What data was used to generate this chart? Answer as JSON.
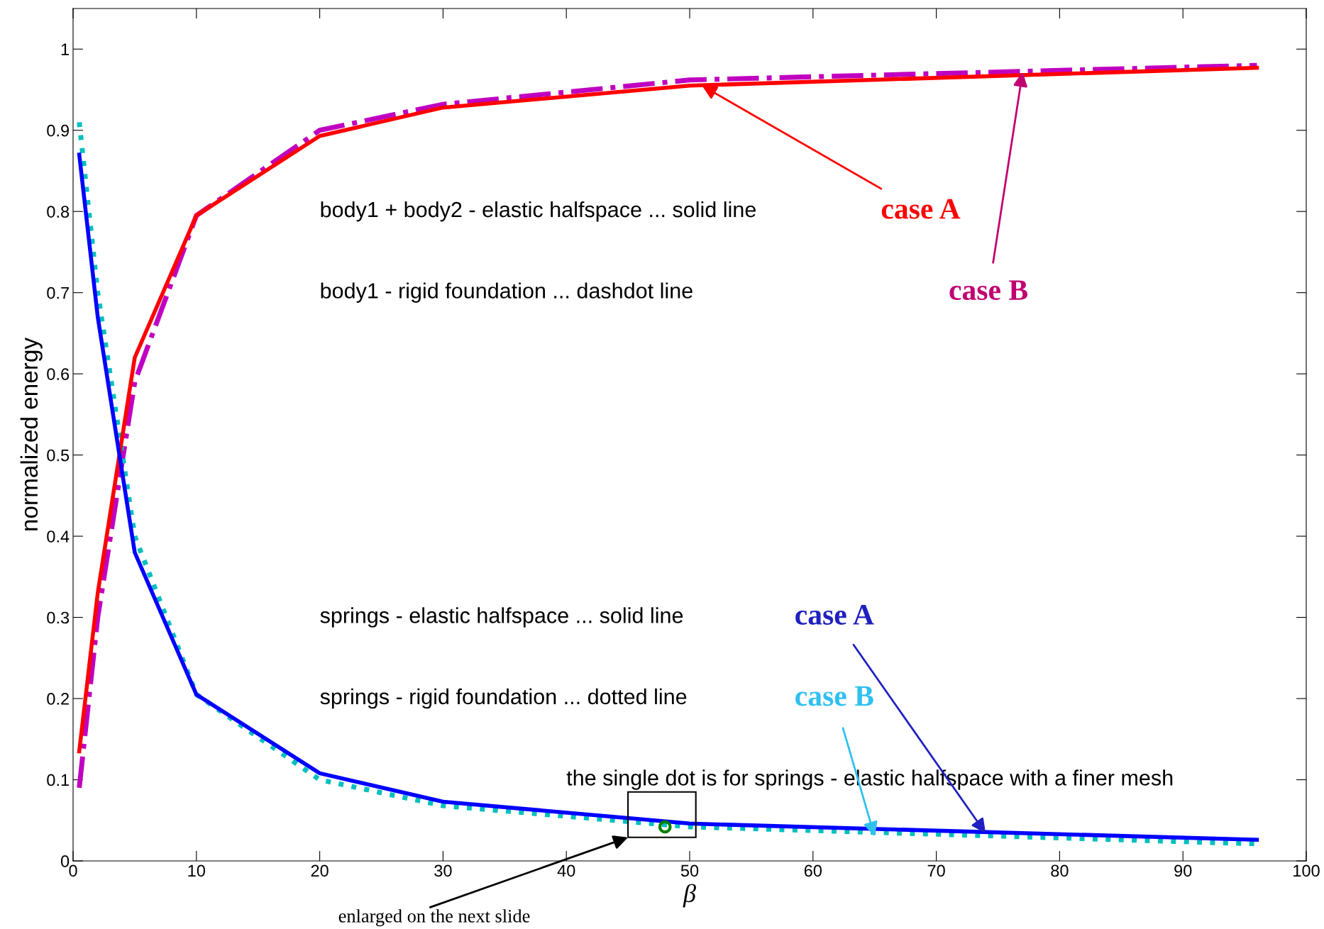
{
  "chart_data": {
    "type": "line",
    "xlabel": "β",
    "ylabel": "normalized energy",
    "xlim": [
      0,
      100
    ],
    "xticks": [
      0,
      10,
      20,
      30,
      40,
      50,
      60,
      70,
      80,
      90,
      100
    ],
    "ylim": [
      0,
      1.05
    ],
    "yticks": [
      0,
      0.1,
      0.2,
      0.3,
      0.4,
      0.5,
      0.6,
      0.7,
      0.8,
      0.9,
      1
    ],
    "grid": false,
    "series": [
      {
        "color": "#ff0000",
        "line_style": "solid",
        "x": [
          0.5,
          2,
          5,
          10,
          20,
          30,
          50,
          96
        ],
        "values": [
          0.135,
          0.33,
          0.62,
          0.795,
          0.893,
          0.928,
          0.955,
          0.977
        ]
      },
      {
        "color": "#c000c0",
        "line_style": "dashdot",
        "x": [
          0.5,
          2,
          5,
          10,
          20,
          30,
          50,
          96
        ],
        "values": [
          0.09,
          0.3,
          0.59,
          0.795,
          0.9,
          0.932,
          0.962,
          0.98
        ]
      },
      {
        "color": "#0000ff",
        "line_style": "solid",
        "x": [
          0.5,
          2,
          5,
          10,
          20,
          30,
          50,
          96
        ],
        "values": [
          0.87,
          0.67,
          0.38,
          0.205,
          0.108,
          0.073,
          0.046,
          0.026
        ]
      },
      {
        "color": "#00bfbf",
        "line_style": "dotted",
        "x": [
          0.5,
          2,
          5,
          10,
          20,
          30,
          50,
          96
        ],
        "values": [
          0.91,
          0.7,
          0.4,
          0.205,
          0.1,
          0.068,
          0.042,
          0.021
        ]
      },
      {
        "type": "scatter",
        "color": "#008000",
        "marker": "circle",
        "x": [
          48
        ],
        "values": [
          0.042
        ]
      }
    ],
    "annotations": [
      "body1 + body2 - elastic halfspace ... solid line",
      "body1 - rigid foundation ... dashdot line",
      "springs - elastic halfspace ... solid line",
      "springs - rigid foundation ... dotted line",
      "the single dot is for springs - elastic halfspace with a finer mesh",
      {
        "text": "case A",
        "x": 51,
        "y": 0.955
      },
      {
        "text": "case B",
        "x": 77,
        "y": 0.972
      },
      {
        "text": "case A",
        "x": 74,
        "y": 0.034
      },
      {
        "text": "case B",
        "x": 65,
        "y": 0.03
      },
      "enlarged on the next slide"
    ]
  }
}
